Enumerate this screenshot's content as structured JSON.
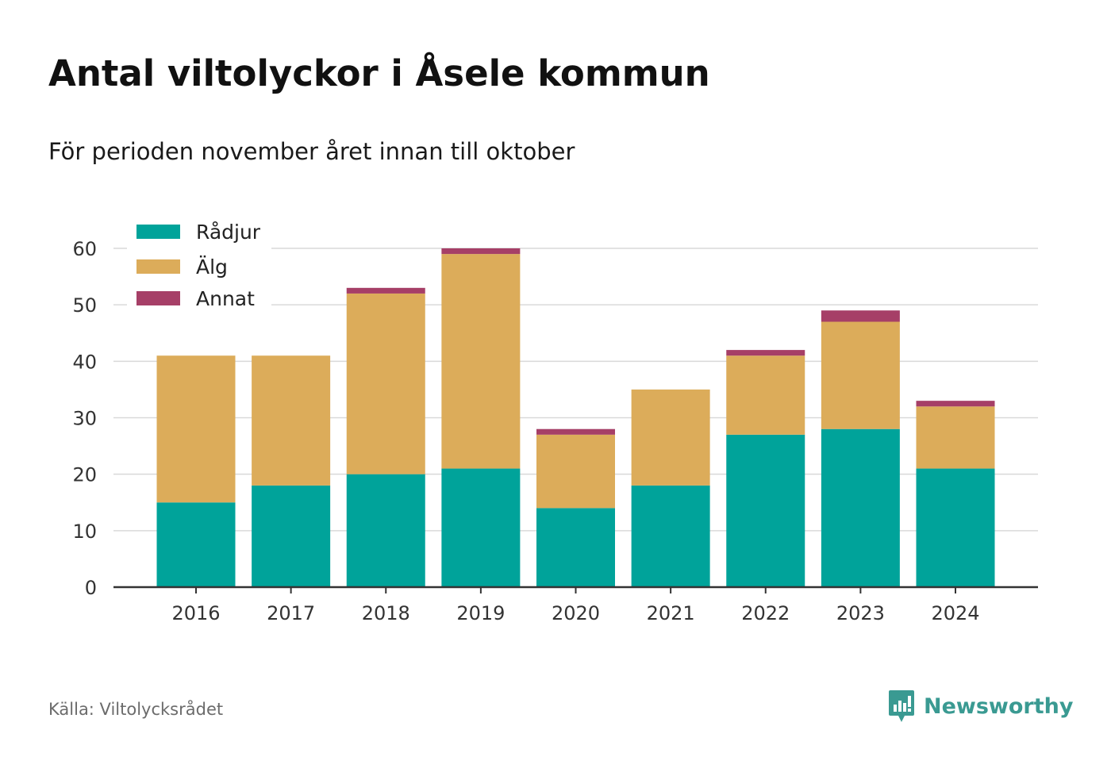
{
  "title": "Antal viltolyckor i Åsele kommun",
  "subtitle": "För perioden november året innan till oktober",
  "source": "Källa: Viltolycksrådet",
  "brand": {
    "name": "Newsworthy",
    "color": "#3a9a92",
    "icon": "newsworthy-logo-icon"
  },
  "chart_data": {
    "type": "bar",
    "stacked": true,
    "categories": [
      "2016",
      "2017",
      "2018",
      "2019",
      "2020",
      "2021",
      "2022",
      "2023",
      "2024"
    ],
    "series": [
      {
        "name": "Rådjur",
        "color": "#00a39a",
        "values": [
          15,
          18,
          20,
          21,
          14,
          18,
          27,
          28,
          21
        ]
      },
      {
        "name": "Älg",
        "color": "#dcac5a",
        "values": [
          26,
          23,
          32,
          38,
          13,
          17,
          14,
          19,
          11
        ]
      },
      {
        "name": "Annat",
        "color": "#a63f67",
        "values": [
          0,
          0,
          1,
          1,
          1,
          0,
          1,
          2,
          1
        ]
      }
    ],
    "ylim": [
      0,
      60
    ],
    "yticks": [
      "0",
      "10",
      "20",
      "30",
      "40",
      "50",
      "60"
    ],
    "grid": true,
    "legend": "top-left"
  }
}
